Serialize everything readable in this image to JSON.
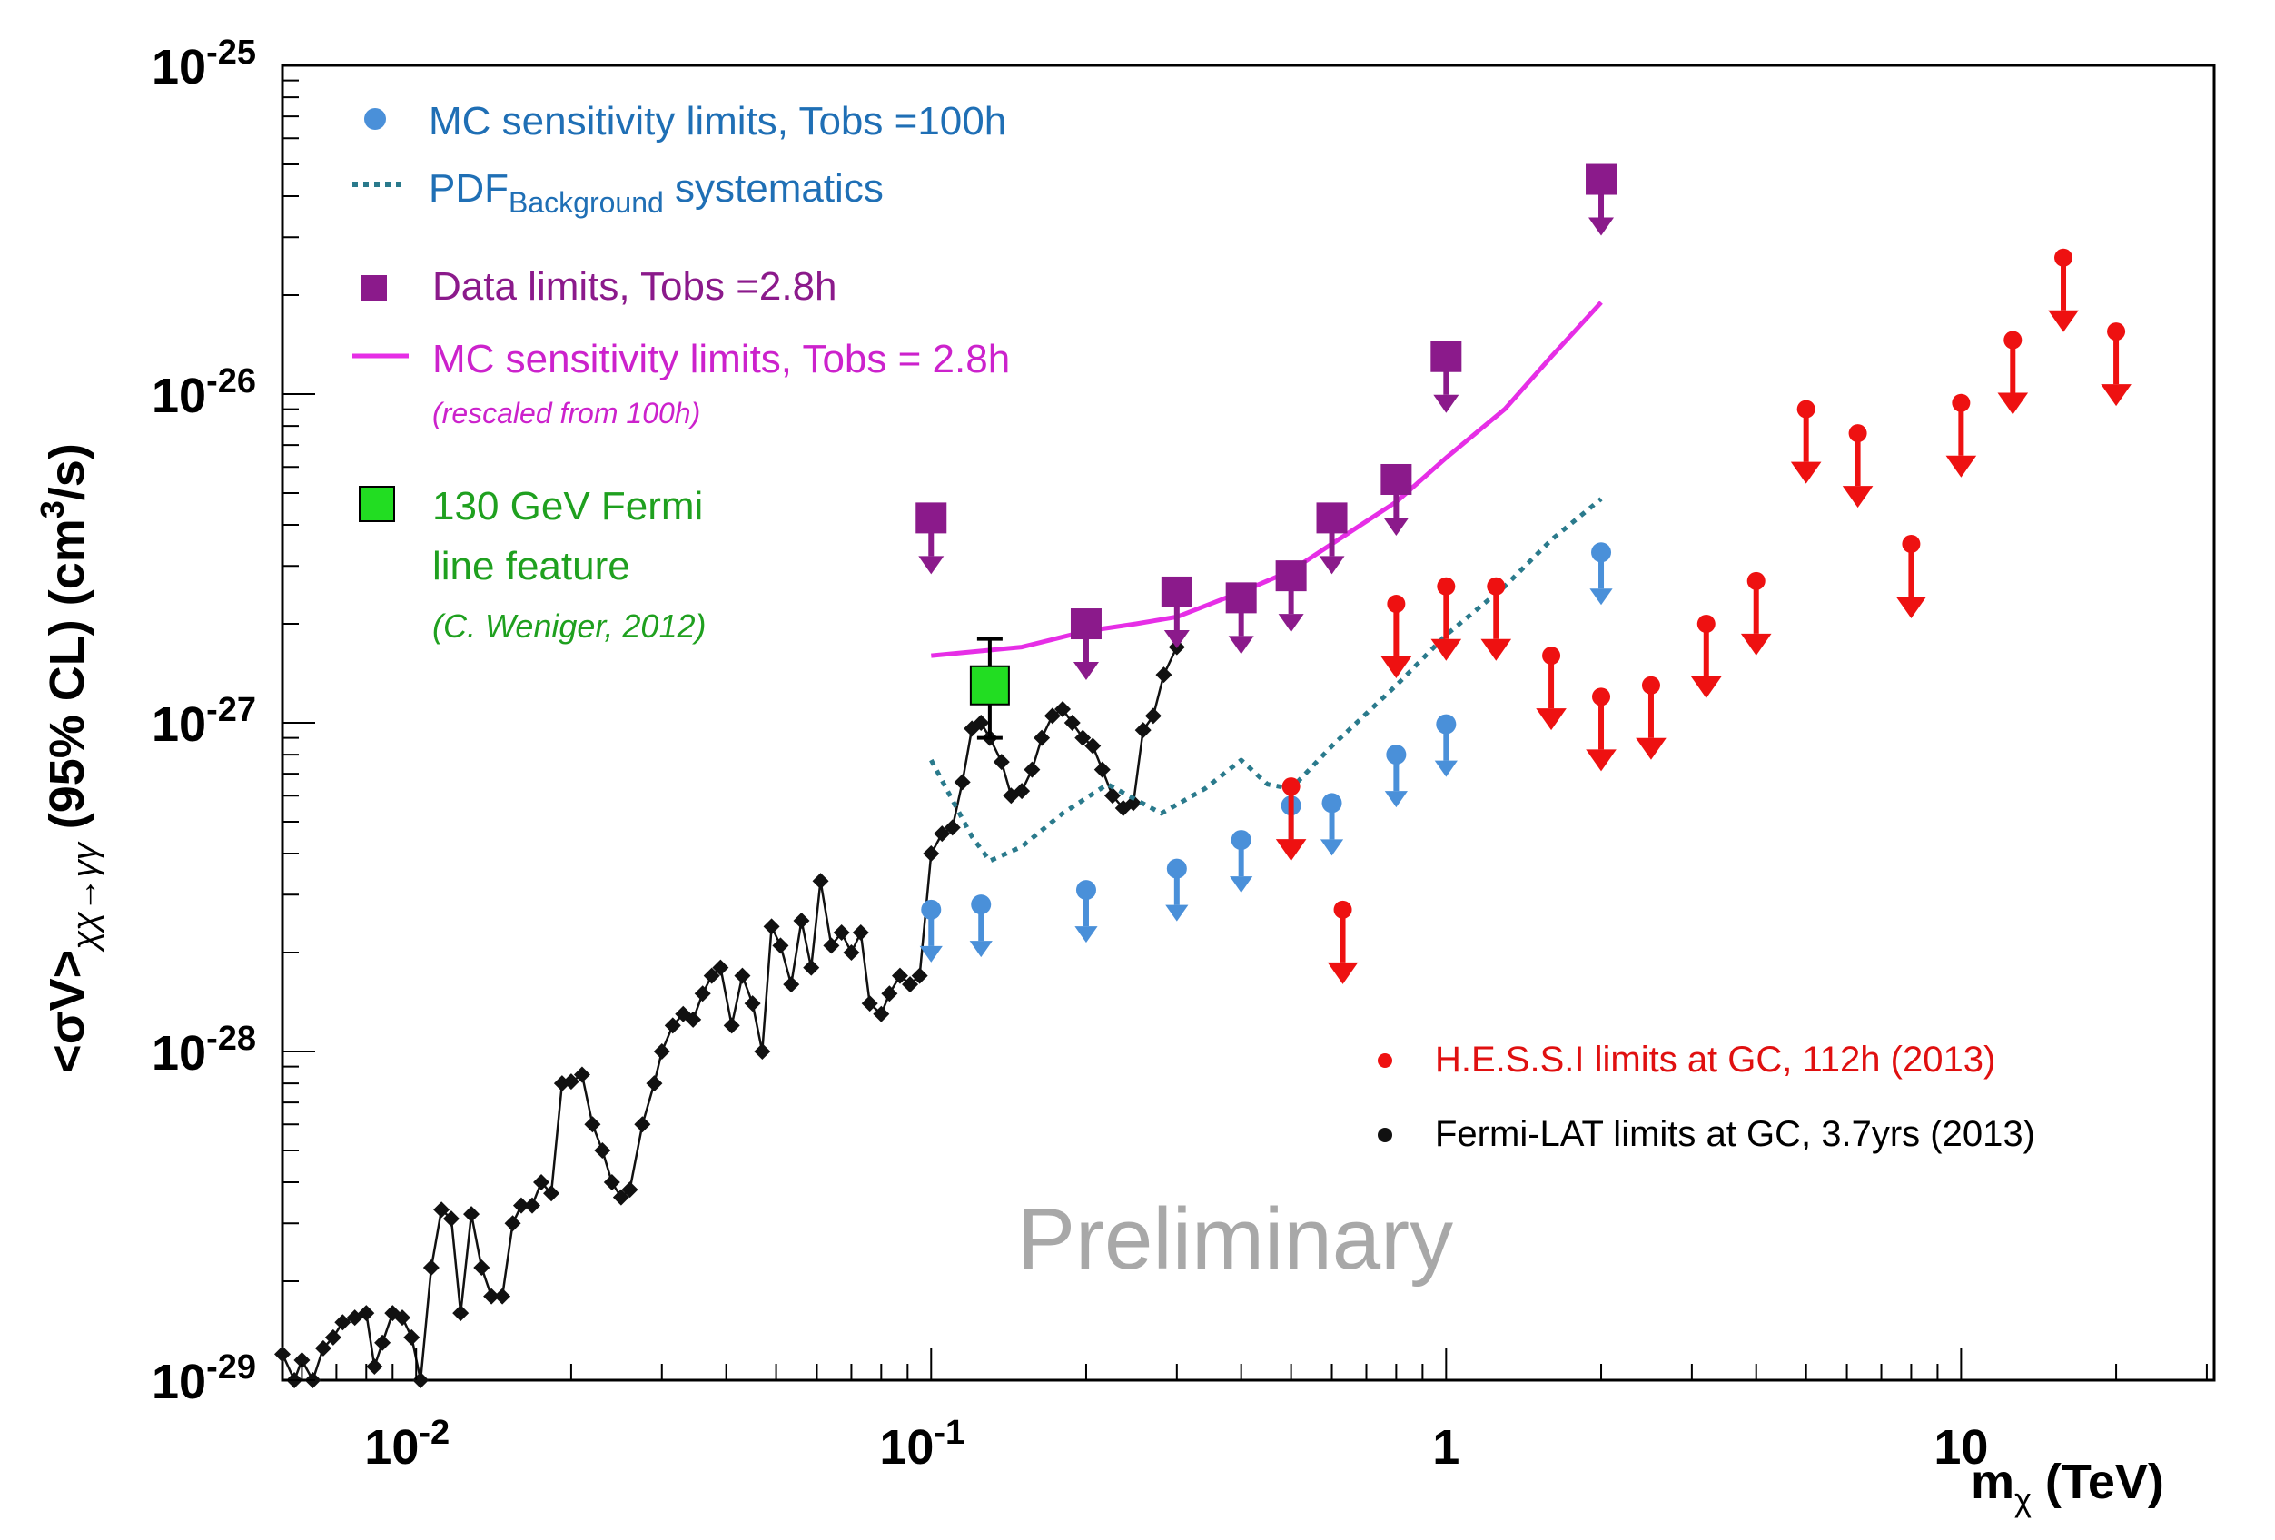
{
  "chart_data": {
    "type": "scatter",
    "title": "",
    "xlabel": "m_χ (TeV)",
    "xlabel_main": "m",
    "xlabel_sub": "χ",
    "xlabel_unit": " (TeV)",
    "ylabel": "<σV>_χχ→γγ (95% CL) (cm³/s)",
    "ylabel_main": "<σV>",
    "ylabel_sub": "χχ→γγ",
    "ylabel_tail": " (95% CL) (cm",
    "ylabel_sup": "3",
    "ylabel_end": "/s)",
    "xscale": "log",
    "yscale": "log",
    "xlim": [
      0.0055,
      31
    ],
    "ylim": [
      1e-29,
      1e-25
    ],
    "x_ticks": [
      {
        "value": 0.01,
        "mantissa": "10",
        "exp": "-2"
      },
      {
        "value": 0.1,
        "mantissa": "10",
        "exp": "-1"
      },
      {
        "value": 1,
        "mantissa": "1",
        "exp": ""
      },
      {
        "value": 10,
        "mantissa": "10",
        "exp": ""
      }
    ],
    "y_ticks": [
      {
        "value": 1e-25,
        "mantissa": "10",
        "exp": "-25"
      },
      {
        "value": 1e-26,
        "mantissa": "10",
        "exp": "-26"
      },
      {
        "value": 1e-27,
        "mantissa": "10",
        "exp": "-27"
      },
      {
        "value": 1e-28,
        "mantissa": "10",
        "exp": "-28"
      },
      {
        "value": 1e-29,
        "mantissa": "10",
        "exp": "-29"
      }
    ],
    "annotation": "Preliminary",
    "colors": {
      "mc_100h": "#4a90d9",
      "pdf_bg": "#2a7a8c",
      "data": "#8b1a8b",
      "mc_28h": "#e62ee6",
      "fermi_line": "#22dd22",
      "hess": "#ee1111",
      "fermi_lat": "#111111",
      "blue_text": "#1f6fb5",
      "purple_text": "#8b1a8b",
      "magenta_text": "#cc22cc",
      "green_text": "#1fa01f",
      "red_text": "#e01010",
      "preliminary": "#a8a8a8"
    },
    "series": [
      {
        "name": "MC sensitivity limits, Tobs =100h",
        "marker": "circle-arrow",
        "x": [
          0.1,
          0.125,
          0.2,
          0.3,
          0.4,
          0.5,
          0.6,
          0.8,
          1.0,
          2.0
        ],
        "y": [
          2.7e-28,
          2.8e-28,
          3.1e-28,
          3.6e-28,
          4.4e-28,
          5.6e-28,
          5.7e-28,
          8e-28,
          9.9e-28,
          3.3e-27
        ]
      },
      {
        "name": "PDF_Background systematics",
        "line": "dotted",
        "x": [
          0.1,
          0.12,
          0.13,
          0.15,
          0.18,
          0.22,
          0.28,
          0.34,
          0.4,
          0.45,
          0.5,
          0.6,
          0.8,
          1.0,
          1.3,
          1.6,
          2.0
        ],
        "y": [
          7.7e-28,
          4.5e-28,
          3.8e-28,
          4.2e-28,
          5.3e-28,
          6.5e-28,
          5.3e-28,
          6.3e-28,
          7.7e-28,
          6.5e-28,
          6.3e-28,
          8.5e-28,
          1.3e-27,
          1.85e-27,
          2.6e-27,
          3.6e-27,
          4.8e-27
        ]
      },
      {
        "name": "Data limits, Tobs =2.8h",
        "marker": "square-arrow",
        "x": [
          0.1,
          0.2,
          0.3,
          0.4,
          0.5,
          0.6,
          0.8,
          1.0,
          2.0
        ],
        "y": [
          4.2e-27,
          2e-27,
          2.5e-27,
          2.4e-27,
          2.8e-27,
          4.2e-27,
          5.5e-27,
          1.3e-26,
          4.5e-26
        ]
      },
      {
        "name": "MC sensitivity limits, Tobs = 2.8h",
        "line": "solid",
        "x": [
          0.1,
          0.15,
          0.2,
          0.25,
          0.3,
          0.4,
          0.5,
          0.6,
          0.8,
          1.0,
          1.3,
          1.6,
          2.0
        ],
        "y": [
          1.6e-27,
          1.7e-27,
          1.9e-27,
          2e-27,
          2.1e-27,
          2.5e-27,
          2.9e-27,
          3.5e-27,
          4.7e-27,
          6.4e-27,
          9e-27,
          1.3e-26,
          1.9e-26
        ]
      },
      {
        "name": "130 GeV Fermi line feature",
        "marker": "square-errorbar",
        "x": [
          0.13
        ],
        "y": [
          1.3e-27
        ],
        "y_err_low": [
          9e-28
        ],
        "y_err_high": [
          1.8e-27
        ]
      },
      {
        "name": "H.E.S.S.I limits at GC, 112h (2013)",
        "marker": "dot-arrow",
        "x": [
          0.5,
          0.63,
          0.8,
          1.0,
          1.25,
          1.6,
          2.0,
          2.5,
          3.2,
          4.0,
          5.0,
          6.3,
          8.0,
          10.0,
          12.6,
          15.8,
          20.0
        ],
        "y": [
          6.4e-28,
          2.7e-28,
          2.3e-27,
          2.6e-27,
          2.6e-27,
          1.6e-27,
          1.2e-27,
          1.3e-27,
          2e-27,
          2.7e-27,
          9e-27,
          7.6e-27,
          3.5e-27,
          9.4e-27,
          1.46e-26,
          2.6e-26,
          1.55e-26
        ]
      },
      {
        "name": "Fermi-LAT limits at GC, 3.7yrs (2013)",
        "marker": "diamond-line",
        "x": [
          0.0055,
          0.0058,
          0.006,
          0.0063,
          0.0066,
          0.0069,
          0.0072,
          0.0076,
          0.008,
          0.0083,
          0.0086,
          0.009,
          0.0094,
          0.0098,
          0.0102,
          0.0107,
          0.0112,
          0.0117,
          0.0122,
          0.0128,
          0.0134,
          0.014,
          0.0147,
          0.0154,
          0.016,
          0.0168,
          0.0175,
          0.0183,
          0.0192,
          0.02,
          0.021,
          0.022,
          0.023,
          0.024,
          0.025,
          0.026,
          0.0275,
          0.029,
          0.03,
          0.0315,
          0.033,
          0.0345,
          0.036,
          0.0375,
          0.039,
          0.041,
          0.043,
          0.045,
          0.047,
          0.049,
          0.051,
          0.0535,
          0.056,
          0.0585,
          0.061,
          0.064,
          0.067,
          0.07,
          0.073,
          0.076,
          0.08,
          0.083,
          0.087,
          0.091,
          0.095,
          0.1,
          0.105,
          0.11,
          0.115,
          0.12,
          0.125,
          0.13,
          0.137,
          0.143,
          0.15,
          0.157,
          0.164,
          0.172,
          0.18,
          0.188,
          0.197,
          0.206,
          0.215,
          0.225,
          0.236,
          0.247,
          0.258,
          0.27,
          0.283,
          0.3
        ],
        "y": [
          1.2e-29,
          1e-29,
          1.15e-29,
          1e-29,
          1.25e-29,
          1.35e-29,
          1.5e-29,
          1.55e-29,
          1.6e-29,
          1.1e-29,
          1.3e-29,
          1.6e-29,
          1.55e-29,
          1.35e-29,
          1e-29,
          2.2e-29,
          3.3e-29,
          3.1e-29,
          1.6e-29,
          3.2e-29,
          2.2e-29,
          1.8e-29,
          1.8e-29,
          3e-29,
          3.4e-29,
          3.4e-29,
          4e-29,
          3.7e-29,
          8e-29,
          8.1e-29,
          8.5e-29,
          6e-29,
          5e-29,
          4e-29,
          3.6e-29,
          3.8e-29,
          6e-29,
          8e-29,
          1e-28,
          1.2e-28,
          1.3e-28,
          1.25e-28,
          1.5e-28,
          1.7e-28,
          1.8e-28,
          1.2e-28,
          1.7e-28,
          1.4e-28,
          1e-28,
          2.4e-28,
          2.1e-28,
          1.6e-28,
          2.5e-28,
          1.8e-28,
          3.3e-28,
          2.1e-28,
          2.3e-28,
          2e-28,
          2.3e-28,
          1.4e-28,
          1.3e-28,
          1.5e-28,
          1.7e-28,
          1.6e-28,
          1.7e-28,
          4e-28,
          4.6e-28,
          4.8e-28,
          6.6e-28,
          9.6e-28,
          1e-27,
          9e-28,
          7.6e-28,
          6e-28,
          6.2e-28,
          7.2e-28,
          9e-28,
          1.05e-27,
          1.1e-27,
          1e-27,
          9e-28,
          8.5e-28,
          7.2e-28,
          6e-28,
          5.5e-28,
          5.7e-28,
          9.5e-28,
          1.05e-27,
          1.4e-27,
          1.7e-27
        ]
      }
    ]
  },
  "legend": {
    "mc100": "MC sensitivity limits, Tobs =100h",
    "pdf_main": "PDF",
    "pdf_sub": "Background",
    "pdf_rest": " systematics",
    "data": "Data limits, Tobs =2.8h",
    "mc28": "MC sensitivity limits, Tobs = 2.8h",
    "mc28_note": "(rescaled from 100h)",
    "fermi_line_1": "130 GeV Fermi",
    "fermi_line_2": "line feature",
    "fermi_line_note": "(C. Weniger, 2012)",
    "hess": "H.E.S.S.I limits at GC, 112h (2013)",
    "fermi_lat": "Fermi-LAT limits at GC, 3.7yrs (2013)"
  }
}
